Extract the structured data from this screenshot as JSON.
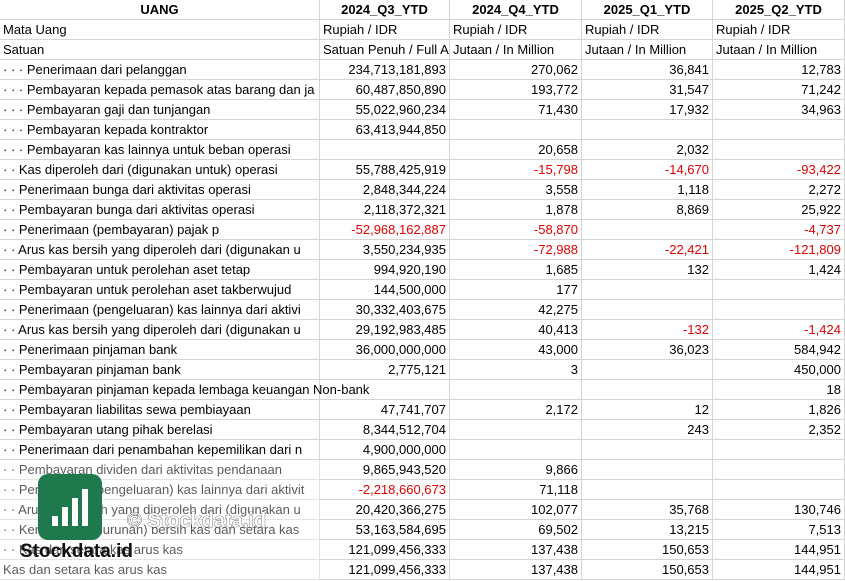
{
  "header": [
    "UANG",
    "2024_Q3_YTD",
    "2024_Q4_YTD",
    "2025_Q1_YTD",
    "2025_Q2_YTD"
  ],
  "currency_row": {
    "label": "Mata Uang",
    "values": [
      "Rupiah / IDR",
      "Rupiah / IDR",
      "Rupiah / IDR",
      "Rupiah / IDR"
    ]
  },
  "unit_row": {
    "label": "Satuan",
    "values": [
      "Satuan Penuh / Full A",
      "Jutaan / In Million",
      "Jutaan / In Million",
      "Jutaan / In Million"
    ]
  },
  "rows": [
    {
      "label": "· · · Penerimaan dari pelanggan",
      "values": [
        "234,713,181,893",
        "270,062",
        "36,841",
        "12,783"
      ]
    },
    {
      "label": "· · · Pembayaran kepada pemasok atas barang dan ja",
      "values": [
        "60,487,850,890",
        "193,772",
        "31,547",
        "71,242"
      ]
    },
    {
      "label": "· · · Pembayaran gaji dan tunjangan",
      "values": [
        "55,022,960,234",
        "71,430",
        "17,932",
        "34,963"
      ]
    },
    {
      "label": "· · · Pembayaran kepada kontraktor",
      "values": [
        "63,413,944,850",
        null,
        null,
        null
      ]
    },
    {
      "label": "· · · Pembayaran kas lainnya untuk beban operasi",
      "values": [
        null,
        "20,658",
        "2,032",
        null
      ]
    },
    {
      "label": "· · Kas diperoleh dari (digunakan untuk) operasi",
      "values": [
        "55,788,425,919",
        "-15,798",
        "-14,670",
        "-93,422"
      ]
    },
    {
      "label": "· · Penerimaan bunga dari aktivitas operasi",
      "values": [
        "2,848,344,224",
        "3,558",
        "1,118",
        "2,272"
      ]
    },
    {
      "label": "· · Pembayaran bunga dari aktivitas operasi",
      "values": [
        "2,118,372,321",
        "1,878",
        "8,869",
        "25,922"
      ]
    },
    {
      "label": "· · Penerimaan (pembayaran) pajak p",
      "values": [
        "-52,968,162,887",
        "-58,870",
        null,
        "-4,737"
      ]
    },
    {
      "label": "· · Arus kas bersih yang diperoleh dari (digunakan u",
      "values": [
        "3,550,234,935",
        "-72,988",
        "-22,421",
        "-121,809"
      ]
    },
    {
      "label": "· · Pembayaran untuk perolehan aset tetap",
      "values": [
        "994,920,190",
        "1,685",
        "132",
        "1,424"
      ]
    },
    {
      "label": "· · Pembayaran untuk perolehan aset takberwujud",
      "values": [
        "144,500,000",
        "177",
        null,
        null
      ]
    },
    {
      "label": "· · Penerimaan (pengeluaran) kas lainnya dari aktivi",
      "values": [
        "30,332,403,675",
        "42,275",
        null,
        null
      ]
    },
    {
      "label": "· · Arus kas bersih yang diperoleh dari (digunakan u",
      "values": [
        "29,192,983,485",
        "40,413",
        "-132",
        "-1,424"
      ]
    },
    {
      "label": "· · Penerimaan pinjaman bank",
      "values": [
        "36,000,000,000",
        "43,000",
        "36,023",
        "584,942"
      ]
    },
    {
      "label": "· · Pembayaran pinjaman bank",
      "values": [
        "2,775,121",
        "3",
        null,
        "450,000"
      ]
    },
    {
      "label": "· · Pembayaran pinjaman kepada lembaga keuangan Non-bank",
      "values": [
        null,
        null,
        null,
        "18"
      ]
    },
    {
      "label": "· · Pembayaran liabilitas sewa pembiayaan",
      "values": [
        "47,741,707",
        "2,172",
        "12",
        "1,826"
      ]
    },
    {
      "label": "· · Pembayaran utang pihak berelasi",
      "values": [
        "8,344,512,704",
        null,
        "243",
        "2,352"
      ]
    },
    {
      "label": "· · Penerimaan dari penambahan kepemilikan dari n",
      "values": [
        "4,900,000,000",
        null,
        null,
        null
      ]
    },
    {
      "label": "· · Pembayaran dividen dari aktivitas pendanaan",
      "values": [
        "9,865,943,520",
        "9,866",
        null,
        null
      ]
    },
    {
      "label": "· · Penerimaan (pengeluaran) kas lainnya dari aktivit",
      "values": [
        "-2,218,660,673",
        "71,118",
        null,
        null
      ]
    },
    {
      "label": "· · Arus kas bersih yang diperoleh dari (digunakan u",
      "values": [
        "20,420,366,275",
        "102,077",
        "35,768",
        "130,746"
      ]
    },
    {
      "label": "· · Kenaikan (penurunan) bersih kas dan setara kas",
      "values": [
        "53,163,584,695",
        "69,502",
        "13,215",
        "7,513"
      ]
    },
    {
      "label": "· · Kas dan setara kas arus kas",
      "values": [
        "121,099,456,333",
        "137,438",
        "150,653",
        "144,951"
      ]
    },
    {
      "label": "Kas dan setara kas arus kas",
      "values": [
        "121,099,456,333",
        "137,438",
        "150,653",
        "144,951"
      ]
    }
  ],
  "watermark": {
    "caption": "© Stockdata.id",
    "logo_text": "Stockdata.id"
  }
}
